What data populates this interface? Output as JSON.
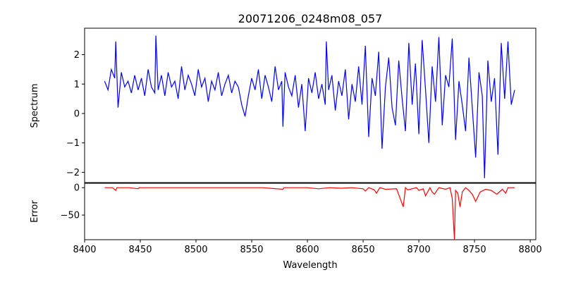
{
  "chart_data": {
    "type": "line",
    "title": "20071206_0248m08_057",
    "xlabel": "Wavelength",
    "xlim": [
      8400,
      8805
    ],
    "xticks": [
      "8400",
      "8450",
      "8500",
      "8550",
      "8600",
      "8650",
      "8700",
      "8750",
      "8800"
    ],
    "panels": [
      {
        "name": "spectrum",
        "ylabel": "Spectrum",
        "ylim": [
          -2.35,
          2.9
        ],
        "yticks": [
          "2",
          "1",
          "0",
          "−1",
          "−2"
        ],
        "ytick_values": [
          2,
          1,
          0,
          -1,
          -2
        ],
        "color": "#0000ff",
        "x": [
          8418,
          8421,
          8424,
          8427,
          8428,
          8430,
          8433,
          8436,
          8439,
          8442,
          8445,
          8448,
          8451,
          8454,
          8457,
          8460,
          8463,
          8464,
          8466,
          8469,
          8472,
          8475,
          8478,
          8481,
          8484,
          8487,
          8490,
          8493,
          8496,
          8499,
          8502,
          8505,
          8508,
          8511,
          8514,
          8517,
          8520,
          8523,
          8526,
          8529,
          8532,
          8535,
          8538,
          8541,
          8544,
          8547,
          8550,
          8553,
          8556,
          8559,
          8562,
          8565,
          8568,
          8571,
          8574,
          8577,
          8578,
          8580,
          8583,
          8586,
          8589,
          8592,
          8595,
          8598,
          8601,
          8604,
          8607,
          8610,
          8613,
          8616,
          8617,
          8619,
          8622,
          8625,
          8628,
          8631,
          8634,
          8637,
          8640,
          8643,
          8646,
          8649,
          8652,
          8655,
          8658,
          8661,
          8664,
          8667,
          8670,
          8673,
          8676,
          8679,
          8682,
          8685,
          8688,
          8691,
          8694,
          8697,
          8700,
          8703,
          8706,
          8709,
          8712,
          8715,
          8718,
          8721,
          8724,
          8727,
          8730,
          8733,
          8736,
          8739,
          8742,
          8745,
          8748,
          8751,
          8754,
          8757,
          8759,
          8762,
          8765,
          8768,
          8771,
          8774,
          8777,
          8780,
          8783,
          8786
        ],
        "values": [
          1.1,
          0.8,
          1.5,
          1.2,
          2.45,
          0.2,
          1.4,
          0.9,
          1.1,
          0.7,
          1.3,
          0.8,
          1.2,
          0.6,
          1.5,
          0.9,
          0.7,
          2.65,
          0.8,
          1.3,
          0.6,
          1.4,
          0.9,
          1.1,
          0.5,
          1.6,
          0.8,
          1.3,
          1.0,
          0.6,
          1.5,
          0.9,
          1.2,
          0.4,
          1.1,
          0.8,
          1.4,
          0.6,
          1.0,
          1.3,
          0.7,
          1.1,
          0.9,
          0.3,
          -0.1,
          0.6,
          1.2,
          0.8,
          1.5,
          0.5,
          1.3,
          0.9,
          0.4,
          1.6,
          0.8,
          1.1,
          -0.45,
          1.4,
          0.9,
          0.6,
          1.3,
          0.2,
          1.0,
          -0.6,
          1.2,
          0.7,
          1.4,
          0.5,
          1.0,
          0.3,
          2.45,
          0.8,
          1.3,
          0.1,
          1.1,
          0.6,
          1.5,
          -0.2,
          1.0,
          0.4,
          1.6,
          0.3,
          2.3,
          -0.8,
          1.2,
          0.6,
          2.1,
          -1.2,
          0.9,
          1.9,
          0.2,
          -0.4,
          1.8,
          0.5,
          -0.6,
          2.4,
          0.3,
          1.7,
          -0.7,
          2.5,
          0.8,
          -1.0,
          1.6,
          0.4,
          2.6,
          -0.4,
          1.3,
          0.9,
          2.55,
          -0.9,
          1.1,
          0.3,
          -0.6,
          1.9,
          0.2,
          -1.5,
          1.4,
          0.6,
          -2.2,
          1.8,
          0.4,
          1.2,
          -1.4,
          2.4,
          0.5,
          2.45,
          0.3,
          0.8
        ]
      },
      {
        "name": "error",
        "ylabel": "Error",
        "ylim": [
          -95,
          8
        ],
        "yticks": [
          "0",
          "−50"
        ],
        "ytick_values": [
          0,
          -50
        ],
        "color": "#ff0000",
        "x": [
          8418,
          8425,
          8428,
          8429,
          8440,
          8448,
          8449,
          8460,
          8480,
          8500,
          8520,
          8540,
          8560,
          8578,
          8579,
          8590,
          8600,
          8610,
          8620,
          8630,
          8640,
          8650,
          8652,
          8655,
          8660,
          8662,
          8665,
          8670,
          8680,
          8686,
          8688,
          8690,
          8698,
          8700,
          8704,
          8706,
          8710,
          8712,
          8714,
          8718,
          8724,
          8728,
          8730,
          8732,
          8733,
          8735,
          8737,
          8739,
          8742,
          8745,
          8748,
          8751,
          8755,
          8760,
          8765,
          8770,
          8775,
          8778,
          8780,
          8786
        ],
        "values": [
          0,
          0,
          -5,
          0,
          0,
          -2,
          0,
          0,
          0,
          0,
          0,
          0,
          0,
          -3,
          0,
          0,
          0,
          -2,
          0,
          -1,
          0,
          -2,
          -6,
          0,
          -4,
          -10,
          0,
          -3,
          -2,
          -35,
          0,
          -4,
          0,
          -5,
          -2,
          -15,
          0,
          -8,
          -12,
          0,
          -3,
          0,
          -20,
          -95,
          -5,
          -10,
          -35,
          -8,
          0,
          -5,
          -12,
          -25,
          -8,
          -3,
          -5,
          -12,
          -3,
          -10,
          0,
          0
        ]
      }
    ]
  }
}
